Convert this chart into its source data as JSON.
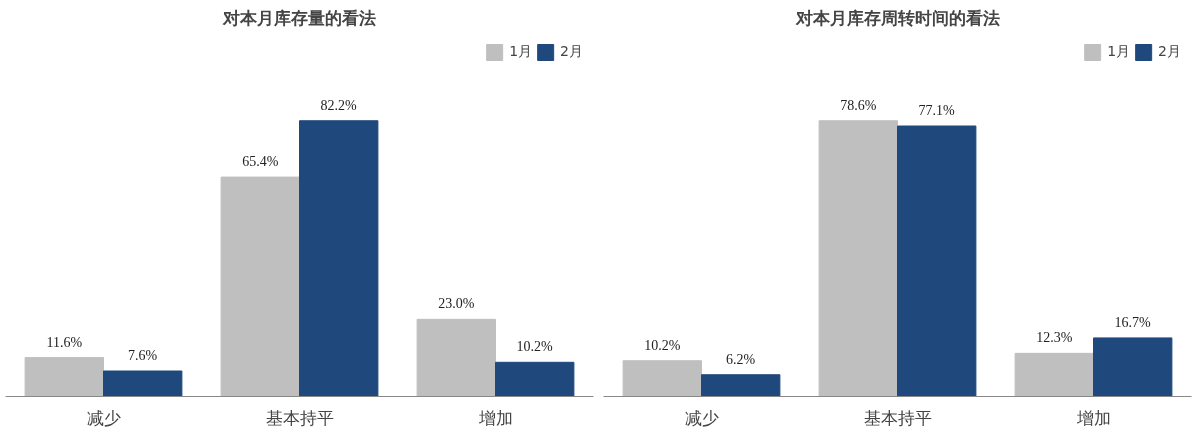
{
  "chart_data": [
    {
      "type": "bar",
      "title": "对本月库存量的看法",
      "categories": [
        "减少",
        "基本持平",
        "增加"
      ],
      "legend": "top right",
      "grid": false,
      "series": [
        {
          "name": "1月",
          "color": "#bfbfbf",
          "values": [
            11.6,
            65.4,
            23.0
          ],
          "value_labels": [
            "11.6%",
            "65.4%",
            "23.0%"
          ]
        },
        {
          "name": "2月",
          "color": "#1f497d",
          "values": [
            7.6,
            82.2,
            10.2
          ],
          "value_labels": [
            "7.6%",
            "82.2%",
            "10.2%"
          ]
        }
      ]
    },
    {
      "type": "bar",
      "title": "对本月库存周转时间的看法",
      "categories": [
        "减少",
        "基本持平",
        "增加"
      ],
      "legend": "top right",
      "grid": false,
      "series": [
        {
          "name": "1月",
          "color": "#bfbfbf",
          "values": [
            10.2,
            78.6,
            12.3
          ],
          "value_labels": [
            "10.2%",
            "78.6%",
            "12.3%"
          ]
        },
        {
          "name": "2月",
          "color": "#1f497d",
          "values": [
            6.2,
            77.1,
            16.7
          ],
          "value_labels": [
            "6.2%",
            "77.1%",
            "16.7%"
          ]
        }
      ]
    }
  ]
}
